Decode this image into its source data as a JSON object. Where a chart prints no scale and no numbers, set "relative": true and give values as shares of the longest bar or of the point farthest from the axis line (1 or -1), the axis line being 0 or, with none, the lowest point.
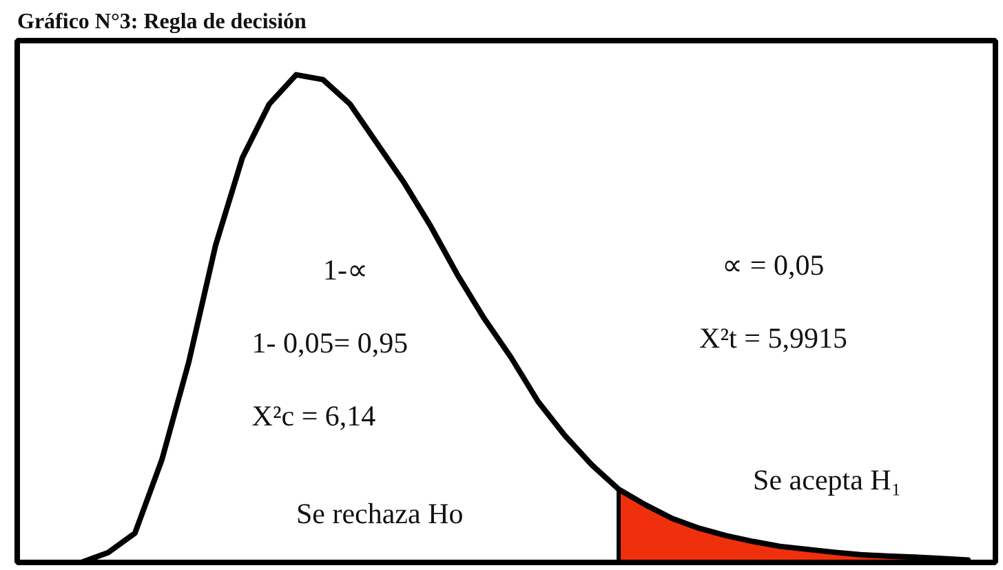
{
  "chart_data": {
    "type": "line",
    "title": "Gráfico N°3: Regla de decisión",
    "relative": true,
    "categories": [
      null,
      null,
      null,
      null,
      null,
      null,
      null,
      null,
      null,
      null,
      null,
      null,
      null,
      null,
      null,
      null,
      null,
      null,
      null,
      null,
      null,
      null,
      null,
      null,
      null,
      null,
      null,
      null,
      null,
      null,
      null,
      null,
      null,
      null
    ],
    "series": [
      {
        "color": "#000000",
        "values": [
          0,
          0.02,
          0.06,
          0.21,
          0.41,
          0.65,
          0.83,
          0.94,
          1,
          0.99,
          0.94,
          0.86,
          0.78,
          0.69,
          0.59,
          0.5,
          0.42,
          0.33,
          0.26,
          0.2,
          0.15,
          0.118,
          0.09,
          0.07,
          0.055,
          0.043,
          0.033,
          0.027,
          0.021,
          0.016,
          0.013,
          0.011,
          0.008,
          0.005
        ]
      },
      {
        "type": "area",
        "color": "#f0300c",
        "values": [
          null,
          null,
          null,
          null,
          null,
          null,
          null,
          null,
          null,
          null,
          null,
          null,
          null,
          null,
          null,
          null,
          null,
          null,
          null,
          null,
          0.15,
          0.118,
          0.09,
          0.07,
          0.055,
          0.043,
          0.033,
          0.027,
          0.021,
          0.016,
          0.013,
          0.011,
          0.008,
          0.005
        ]
      }
    ],
    "annotations": [
      "1-∝",
      "1- 0,05= 0,95",
      "X²c = 6,14",
      "Se rechaza Ho",
      "∝ = 0,05",
      "X²t = 5,9915",
      "Se acepta H₁"
    ]
  }
}
